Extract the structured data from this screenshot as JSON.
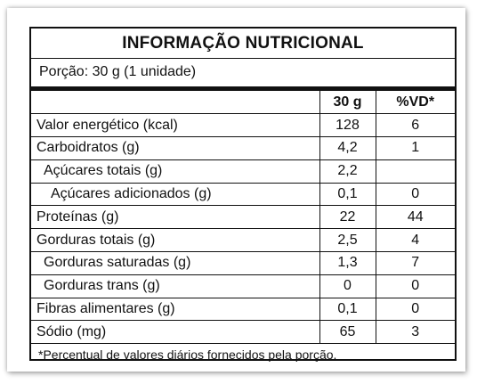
{
  "title": "INFORMAÇÃO NUTRICIONAL",
  "portion": "Porção: 30 g (1 unidade)",
  "headers": {
    "blank": "",
    "amount": "30 g",
    "dv": "%VD*"
  },
  "rows": [
    {
      "name": "Valor energético (kcal)",
      "amount": "128",
      "dv": "6",
      "level": 0
    },
    {
      "name": "Carboidratos (g)",
      "amount": "4,2",
      "dv": "1",
      "level": 0
    },
    {
      "name": "Açúcares totais (g)",
      "amount": "2,2",
      "dv": "",
      "level": 1
    },
    {
      "name": "Açúcares adicionados (g)",
      "amount": "0,1",
      "dv": "0",
      "level": 2
    },
    {
      "name": "Proteínas (g)",
      "amount": "22",
      "dv": "44",
      "level": 0
    },
    {
      "name": "Gorduras totais (g)",
      "amount": "2,5",
      "dv": "4",
      "level": 0
    },
    {
      "name": "Gorduras saturadas (g)",
      "amount": "1,3",
      "dv": "7",
      "level": 1
    },
    {
      "name": "Gorduras trans (g)",
      "amount": "0",
      "dv": "0",
      "level": 1
    },
    {
      "name": "Fibras alimentares (g)",
      "amount": "0,1",
      "dv": "0",
      "level": 0
    },
    {
      "name": "Sódio (mg)",
      "amount": "65",
      "dv": "3",
      "level": 0
    }
  ],
  "footer": "*Percentual de valores diários fornecidos pela porção."
}
